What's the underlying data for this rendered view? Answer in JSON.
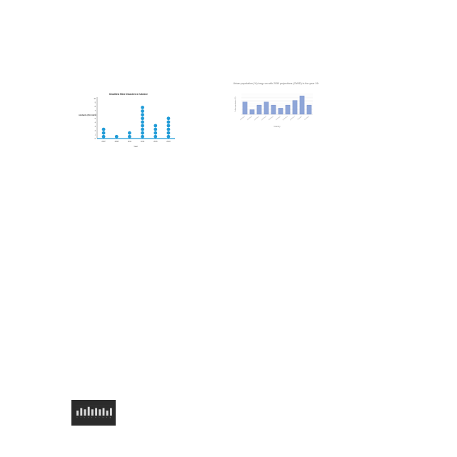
{
  "colors": {
    "dot_fill": "#1f9bd7",
    "dot_axis": "#1f9bd7",
    "bar_fill": "#8fa6d8",
    "bar_stroke": "#5b78bf",
    "grid": "#e6e6e6",
    "dark_bg": "#2b2b2b",
    "dark_bar": "#d9d9d9"
  },
  "chart_data": [
    {
      "type": "scatter",
      "title": "Deadliest Mine Disasters in Ukraine",
      "xlabel": "Year",
      "ylabel": "Incidents (On Axis)",
      "categories": [
        "2007",
        "2008",
        "2011",
        "2014",
        "2016",
        "2018"
      ],
      "values": [
        3,
        1,
        2,
        9,
        4,
        6
      ],
      "yticks": [
        "0",
        "1",
        "2",
        "3",
        "4",
        "5",
        "6",
        "7",
        "8",
        "9",
        "10"
      ],
      "ylim": [
        0,
        10
      ],
      "grid": false
    },
    {
      "type": "bar",
      "title": "Urban population (%) long-run with 2050 projections (OWID) in the year 1966",
      "xlabel": "Country",
      "ylabel": "Urban population (%)",
      "categories": [
        "Country A",
        "Country B",
        "Country C",
        "Country D",
        "Country E",
        "Country F",
        "Country G",
        "Country H",
        "Country I",
        "Country J"
      ],
      "values": [
        8,
        3,
        6,
        8,
        6,
        4,
        6,
        9,
        12,
        6
      ],
      "ylim": [
        0,
        13
      ],
      "grid": true
    },
    {
      "type": "bar",
      "title": "",
      "categories": [
        "1",
        "2",
        "3",
        "4",
        "5",
        "6",
        "7",
        "8",
        "9",
        "10"
      ],
      "values": [
        4,
        6,
        5,
        7,
        5,
        6,
        5,
        6,
        4,
        6
      ],
      "ylim": [
        0,
        8
      ],
      "grid": true
    }
  ]
}
